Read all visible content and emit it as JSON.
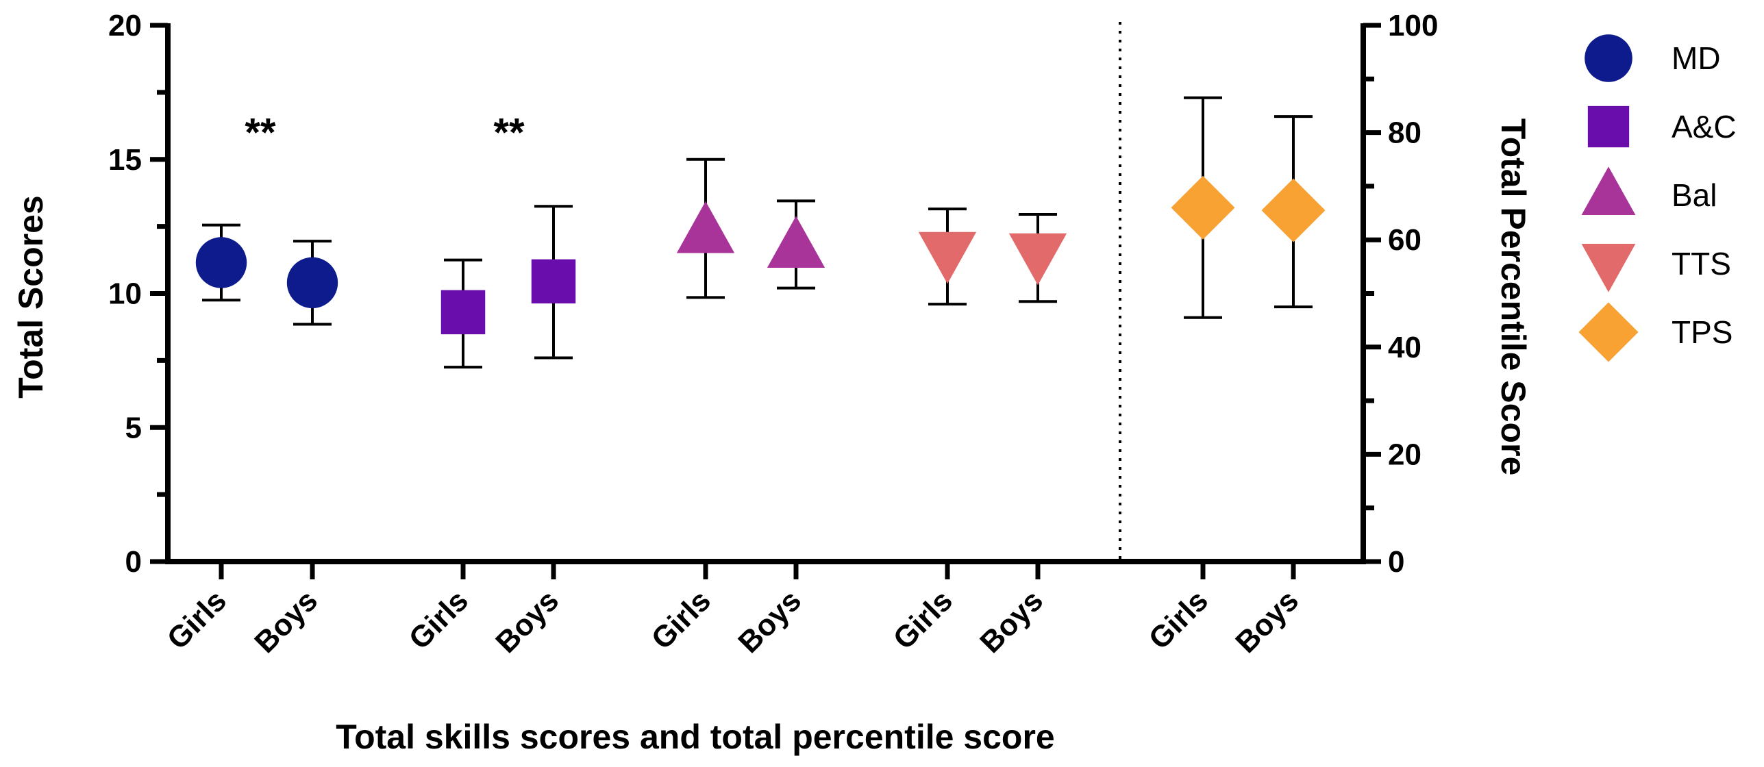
{
  "chart_data": {
    "type": "scatter",
    "subtype": "mean-with-error-bars",
    "xlabel": "Total skills scores and total percentile score",
    "ylabel_left": "Total Scores",
    "ylabel_right": "Total Percentile Score",
    "ylim_left": [
      0,
      20
    ],
    "ylim_right": [
      0,
      100
    ],
    "yticks_left": [
      0,
      5,
      10,
      15,
      20
    ],
    "yticks_right": [
      0,
      20,
      40,
      60,
      80,
      100
    ],
    "series": [
      {
        "name": "MD",
        "marker": "circle",
        "color": "#0d1b8c",
        "axis": "left",
        "points": [
          {
            "category": "Girls",
            "mean": 11.15,
            "lower": 9.75,
            "upper": 12.55
          },
          {
            "category": "Boys",
            "mean": 10.4,
            "lower": 8.85,
            "upper": 11.95
          }
        ]
      },
      {
        "name": "A&C",
        "marker": "square",
        "color": "#6a0dad",
        "axis": "left",
        "points": [
          {
            "category": "Girls",
            "mean": 9.3,
            "lower": 7.25,
            "upper": 11.25
          },
          {
            "category": "Boys",
            "mean": 10.45,
            "lower": 7.6,
            "upper": 13.25
          }
        ]
      },
      {
        "name": "Bal",
        "marker": "triangle-up",
        "color": "#a8349a",
        "axis": "left",
        "points": [
          {
            "category": "Girls",
            "mean": 12.3,
            "lower": 9.85,
            "upper": 15.0
          },
          {
            "category": "Boys",
            "mean": 11.75,
            "lower": 10.2,
            "upper": 13.45
          }
        ]
      },
      {
        "name": "TTS",
        "marker": "triangle-down",
        "color": "#e26a6a",
        "axis": "left",
        "points": [
          {
            "category": "Girls",
            "mean": 11.5,
            "lower": 9.6,
            "upper": 13.15
          },
          {
            "category": "Boys",
            "mean": 11.45,
            "lower": 9.7,
            "upper": 12.95
          }
        ]
      },
      {
        "name": "TPS",
        "marker": "diamond",
        "color": "#f7a232",
        "axis": "right",
        "points": [
          {
            "category": "Girls",
            "mean": 66,
            "lower": 45.5,
            "upper": 86.5
          },
          {
            "category": "Boys",
            "mean": 65.5,
            "lower": 47.5,
            "upper": 83
          }
        ]
      }
    ],
    "annotations": [
      {
        "text": "**",
        "series": "MD"
      },
      {
        "text": "**",
        "series": "A&C"
      }
    ],
    "legend": [
      "MD",
      "A&C",
      "Bal",
      "TTS",
      "TPS"
    ],
    "legend_position": "right",
    "separator": "dotted line between TTS and TPS groups"
  }
}
